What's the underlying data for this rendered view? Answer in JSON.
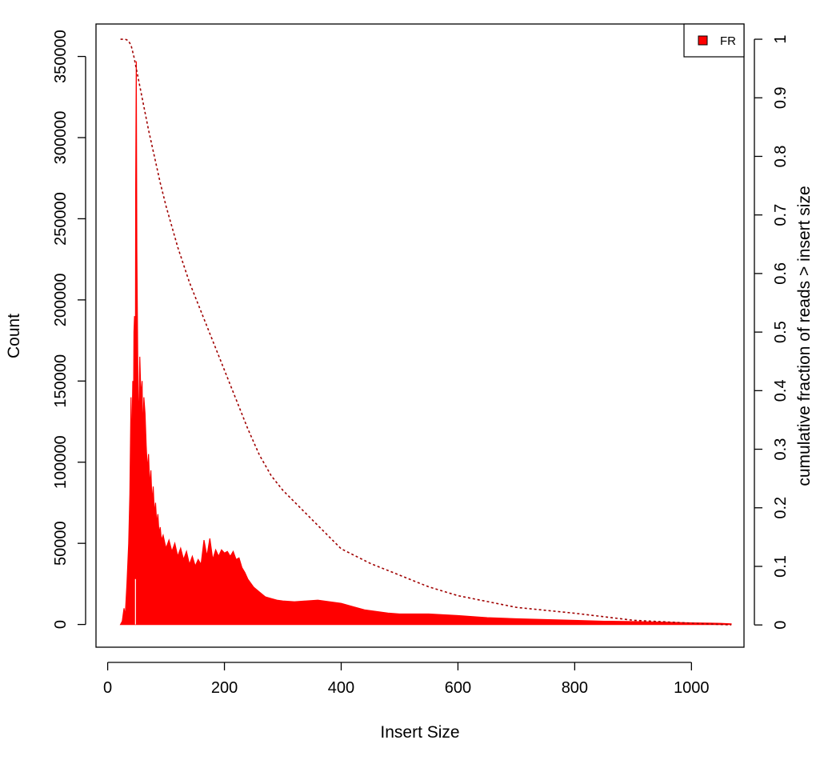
{
  "chart_data": {
    "type": "area",
    "xlabel": "Insert Size",
    "ylabel": "Count",
    "ylabel_right": "cumulative fraction of reads > insert size",
    "xlim": [
      -20,
      1090
    ],
    "ylim": [
      -14000,
      370000
    ],
    "ylim_right": [
      -0.038,
      1.026
    ],
    "x_ticks": [
      "0",
      "200",
      "400",
      "600",
      "800",
      "1000"
    ],
    "y_ticks": [
      "0",
      "50000",
      "100000",
      "150000",
      "200000",
      "250000",
      "300000",
      "350000"
    ],
    "y_ticks_right": [
      "0",
      "0.1",
      "0.2",
      "0.3",
      "0.4",
      "0.5",
      "0.6",
      "0.7",
      "0.8",
      "0.9",
      "1"
    ],
    "grid": false,
    "legend": {
      "position": "top-right",
      "entries": [
        "FR"
      ]
    },
    "colors": {
      "histogram": "#ff0000",
      "cumulative": "#a00000",
      "axis": "#000000"
    },
    "series": [
      {
        "name": "FR",
        "style": "histogram",
        "x": [
          22,
          25,
          28,
          30,
          33,
          36,
          38,
          40,
          41,
          43,
          44,
          45,
          46,
          47,
          48,
          49,
          50,
          51,
          52,
          53,
          55,
          57,
          59,
          60,
          62,
          64,
          66,
          68,
          70,
          72,
          74,
          76,
          78,
          80,
          82,
          84,
          86,
          88,
          90,
          92,
          95,
          98,
          100,
          105,
          110,
          115,
          120,
          125,
          130,
          135,
          140,
          145,
          150,
          155,
          160,
          165,
          170,
          175,
          180,
          185,
          190,
          195,
          200,
          205,
          210,
          215,
          220,
          225,
          230,
          235,
          240,
          250,
          260,
          270,
          280,
          290,
          300,
          320,
          340,
          360,
          380,
          400,
          420,
          440,
          460,
          480,
          500,
          550,
          600,
          650,
          700,
          750,
          800,
          850,
          900,
          950,
          1000,
          1050,
          1068
        ],
        "y": [
          0,
          2000,
          10000,
          5000,
          25000,
          50000,
          80000,
          140000,
          100000,
          150000,
          110000,
          180000,
          190000,
          30000,
          270000,
          347000,
          230000,
          185000,
          140000,
          120000,
          165000,
          140000,
          150000,
          115000,
          140000,
          130000,
          110000,
          95000,
          105000,
          85000,
          95000,
          75000,
          85000,
          68000,
          75000,
          62000,
          68000,
          56000,
          60000,
          52000,
          55000,
          50000,
          47000,
          52000,
          45000,
          50000,
          42000,
          47000,
          40000,
          45000,
          37000,
          42000,
          36000,
          40000,
          37000,
          52000,
          42000,
          53000,
          40000,
          46000,
          42000,
          46000,
          44000,
          45000,
          42000,
          45000,
          40000,
          41000,
          35000,
          32000,
          28000,
          23000,
          20000,
          17000,
          16000,
          15000,
          14500,
          14000,
          14500,
          15000,
          14000,
          13000,
          11000,
          9000,
          8000,
          7000,
          6500,
          6500,
          5500,
          4200,
          3500,
          3000,
          2500,
          2000,
          1800,
          1400,
          1000,
          700,
          400
        ]
      },
      {
        "name": "cumulative fraction of reads > insert size",
        "style": "dashed",
        "axis": "right",
        "x": [
          22,
          30,
          35,
          40,
          45,
          50,
          55,
          60,
          70,
          80,
          90,
          100,
          120,
          140,
          160,
          180,
          200,
          220,
          240,
          260,
          280,
          300,
          350,
          400,
          450,
          500,
          550,
          600,
          650,
          700,
          800,
          900,
          1000,
          1068
        ],
        "y": [
          1.0,
          1.0,
          0.998,
          0.99,
          0.97,
          0.945,
          0.92,
          0.895,
          0.845,
          0.8,
          0.755,
          0.715,
          0.645,
          0.585,
          0.535,
          0.485,
          0.435,
          0.385,
          0.335,
          0.29,
          0.255,
          0.23,
          0.18,
          0.13,
          0.105,
          0.085,
          0.065,
          0.05,
          0.04,
          0.03,
          0.02,
          0.008,
          0.003,
          0.0
        ]
      }
    ]
  }
}
